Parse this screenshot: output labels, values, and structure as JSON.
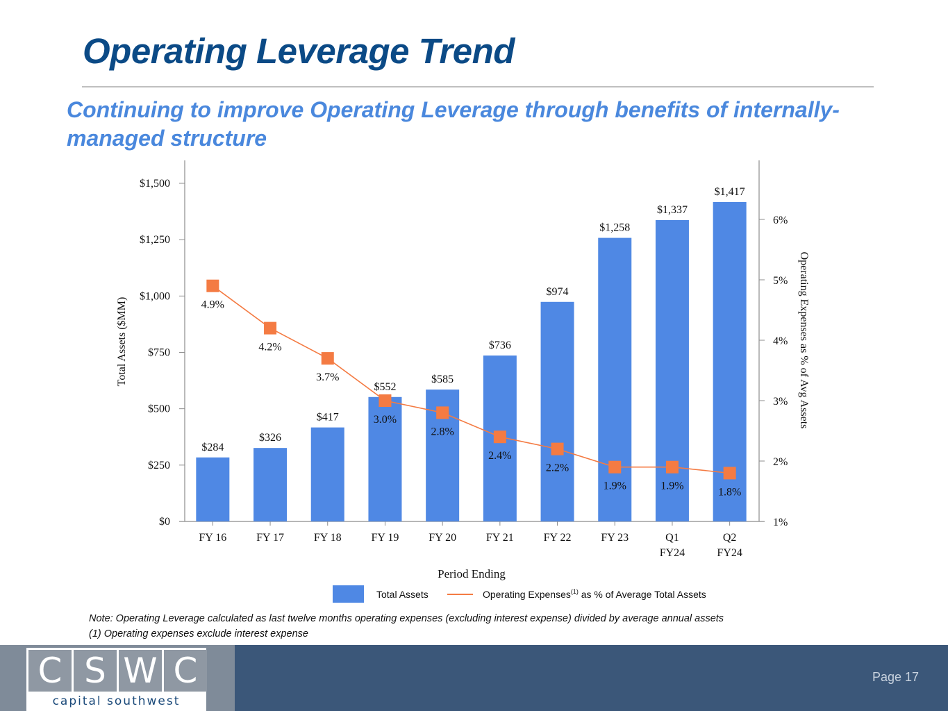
{
  "page": {
    "title": "Operating Leverage Trend",
    "subtitle": "Continuing to improve Operating Leverage through benefits of internally-managed structure",
    "notes": [
      "Note: Operating Leverage calculated as last twelve months operating expenses (excluding interest expense) divided by average annual assets",
      "(1) Operating expenses exclude interest expense"
    ],
    "footer": {
      "logo_letters": [
        "C",
        "S",
        "W",
        "C"
      ],
      "logo_name": "capital southwest",
      "page_label": "Page 17"
    }
  },
  "colors": {
    "title": "#0b4a86",
    "subtitle": "#4a88dd",
    "bar": "#4f88e4",
    "line": "#f47b43",
    "footer": "#3b5779"
  },
  "chart_data": {
    "type": "bar",
    "categories": [
      "FY 16",
      "FY 17",
      "FY 18",
      "FY 19",
      "FY 20",
      "FY 21",
      "FY 22",
      "FY 23",
      "Q1\nFY24",
      "Q2\nFY24"
    ],
    "series": [
      {
        "name": "Total Assets",
        "type": "bar",
        "axis": "left",
        "values": [
          284,
          326,
          417,
          552,
          585,
          736,
          974,
          1258,
          1337,
          1417
        ],
        "labels": [
          "$284",
          "$326",
          "$417",
          "$552",
          "$585",
          "$736",
          "$974",
          "$1,258",
          "$1,337",
          "$1,417"
        ]
      },
      {
        "name": "Operating Expenses(1) as % of Average Total Assets",
        "type": "line",
        "axis": "right",
        "values": [
          4.9,
          4.2,
          3.7,
          3.0,
          2.8,
          2.4,
          2.2,
          1.9,
          1.9,
          1.8
        ],
        "labels": [
          "4.9%",
          "4.2%",
          "3.7%",
          "3.0%",
          "2.8%",
          "2.4%",
          "2.2%",
          "1.9%",
          "1.9%",
          "1.8%"
        ]
      }
    ],
    "legend": {
      "position": "bottom",
      "items": [
        {
          "label": "Total Assets",
          "superscript": ""
        },
        {
          "label": "Operating Expenses",
          "superscript": "(1)",
          "suffix": " as % of Average Total Assets"
        }
      ]
    },
    "xlabel": "Period Ending",
    "ylabel": "Total Assets ($MM)",
    "y2label": "Operating Expenses as % of Avg Assets",
    "ylim": [
      0,
      1600
    ],
    "yticks": [
      0,
      250,
      500,
      750,
      1000,
      1250,
      1500
    ],
    "ytick_labels": [
      "$0",
      "$250",
      "$500",
      "$750",
      "$1,000",
      "$1,250",
      "$1,500"
    ],
    "y2lim": [
      1,
      7
    ],
    "y2ticks": [
      1,
      2,
      3,
      4,
      5,
      6
    ],
    "y2tick_labels": [
      "1%",
      "2%",
      "3%",
      "4%",
      "5%",
      "6%"
    ],
    "grid": false
  }
}
